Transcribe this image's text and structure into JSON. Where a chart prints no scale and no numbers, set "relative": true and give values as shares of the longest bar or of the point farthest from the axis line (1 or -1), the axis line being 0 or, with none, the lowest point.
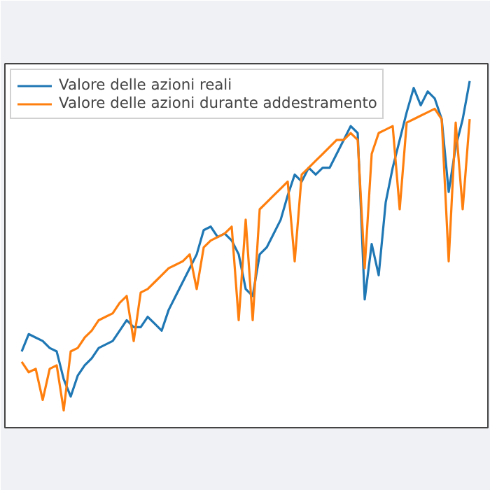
{
  "chart_data": {
    "type": "line",
    "relative": true,
    "legend": "top left",
    "categories": [
      null,
      null,
      null,
      null,
      null,
      null,
      null,
      null,
      null,
      null,
      null,
      null,
      null,
      null,
      null,
      null,
      null,
      null,
      null,
      null,
      null,
      null,
      null,
      null,
      null,
      null,
      null,
      null,
      null,
      null,
      null,
      null,
      null,
      null,
      null,
      null,
      null,
      null,
      null,
      null,
      null,
      null,
      null,
      null,
      null,
      null,
      null,
      null,
      null,
      null,
      null,
      null,
      null,
      null,
      null,
      null,
      null,
      null,
      null,
      null,
      null,
      null,
      null,
      null,
      null
    ],
    "series": [
      {
        "name": "Valore delle azioni reali",
        "color": "#1f77b4",
        "values": [
          0.22,
          0.27,
          0.26,
          0.25,
          0.23,
          0.22,
          0.14,
          0.09,
          0.15,
          0.18,
          0.2,
          0.23,
          0.24,
          0.25,
          0.28,
          0.31,
          0.29,
          0.29,
          0.32,
          0.3,
          0.28,
          0.34,
          0.38,
          0.42,
          0.46,
          0.5,
          0.57,
          0.58,
          0.55,
          0.56,
          0.54,
          0.5,
          0.4,
          0.38,
          0.5,
          0.52,
          0.56,
          0.6,
          0.67,
          0.73,
          0.71,
          0.75,
          0.73,
          0.75,
          0.75,
          0.79,
          0.83,
          0.87,
          0.85,
          0.37,
          0.53,
          0.44,
          0.65,
          0.75,
          0.83,
          0.91,
          0.98,
          0.93,
          0.97,
          0.95,
          0.89,
          0.68,
          0.81,
          0.89,
          1.0
        ]
      },
      {
        "name": "Valore delle azioni durante addestramento",
        "color": "#ff7f0e",
        "values": [
          0.19,
          0.16,
          0.17,
          0.08,
          0.17,
          0.18,
          0.05,
          0.22,
          0.23,
          0.26,
          0.28,
          0.31,
          0.32,
          0.33,
          0.36,
          0.38,
          0.25,
          0.39,
          0.4,
          0.42,
          0.44,
          0.46,
          0.47,
          0.48,
          0.5,
          0.4,
          0.52,
          0.54,
          0.55,
          0.56,
          0.58,
          0.31,
          0.6,
          0.31,
          0.63,
          0.65,
          0.67,
          0.69,
          0.71,
          0.48,
          0.73,
          0.75,
          0.77,
          0.79,
          0.81,
          0.83,
          0.83,
          0.85,
          0.83,
          0.46,
          0.79,
          0.85,
          0.86,
          0.87,
          0.63,
          0.88,
          0.89,
          0.9,
          0.91,
          0.92,
          0.89,
          0.48,
          0.88,
          0.63,
          0.89
        ]
      }
    ]
  }
}
